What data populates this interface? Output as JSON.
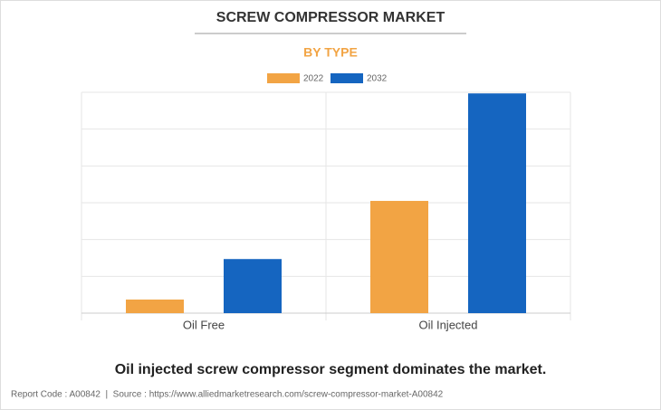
{
  "chart_data": {
    "type": "bar",
    "title": "SCREW COMPRESSOR MARKET",
    "subtitle": "BY TYPE",
    "categories": [
      "Oil Free",
      "Oil Injected"
    ],
    "series": [
      {
        "name": "2022",
        "color": "#f2a444",
        "values": [
          0.37,
          3.05
        ]
      },
      {
        "name": "2032",
        "color": "#1565c0",
        "values": [
          1.47,
          5.97
        ]
      }
    ],
    "ylim": [
      0,
      6
    ],
    "yticks": [
      0,
      1,
      2,
      3,
      4,
      5,
      6
    ],
    "grid": true,
    "legend": "top",
    "caption": "Oil injected screw compressor segment dominates the market.",
    "footer": "Report Code : A00842  |  Source : https://www.alliedmarketresearch.com/screw-compressor-market-A00842"
  }
}
